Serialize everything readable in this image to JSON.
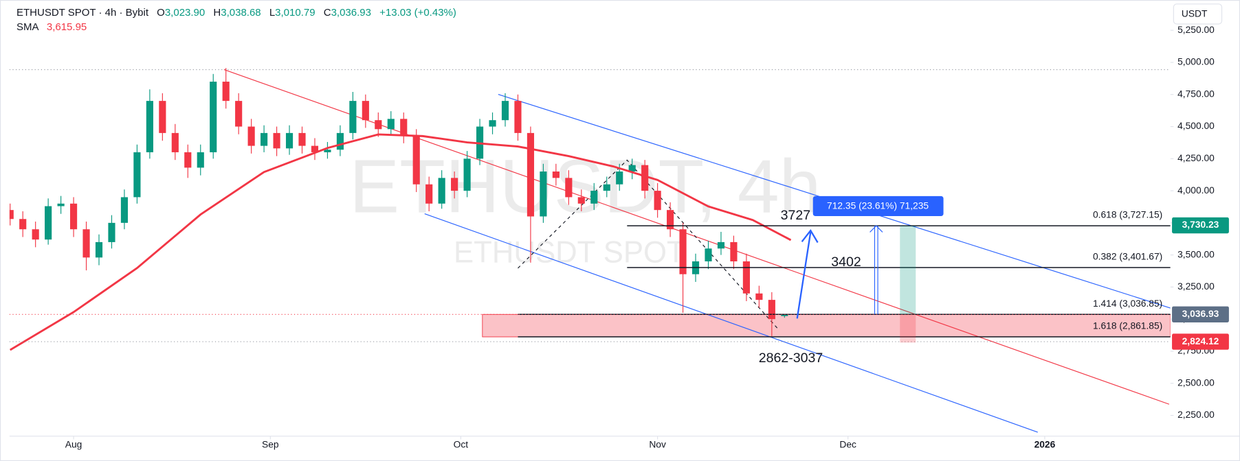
{
  "chart_data": {
    "type": "candlestick",
    "symbol": "ETHUSDT SPOT · 4h · Bybit",
    "ohlc_header": [
      {
        "label": "O",
        "value": "3,023.90"
      },
      {
        "label": "H",
        "value": "3,038.68"
      },
      {
        "label": "L",
        "value": "3,010.79"
      },
      {
        "label": "C",
        "value": "3,036.93"
      }
    ],
    "change": "+13.03 (+0.43%)",
    "currency": "USDT",
    "watermark": "ETHUSDT, 4h",
    "watermark_sub": "ETHUSDT SPOT",
    "up_color": "#089981",
    "down_color": "#f23645",
    "x": [
      -10,
      -8,
      -6,
      -4,
      -2,
      0,
      2,
      4,
      6,
      8,
      10,
      12,
      14,
      16,
      18,
      20,
      22,
      24,
      26,
      28,
      30,
      32,
      34,
      36,
      38,
      40,
      42,
      44,
      46,
      48,
      50,
      52,
      54,
      56,
      58,
      60,
      62,
      64,
      66,
      68,
      70,
      72,
      74,
      76,
      78,
      80,
      82,
      84,
      86,
      88,
      90,
      92,
      94,
      96,
      98,
      100,
      102,
      104,
      106,
      108,
      110,
      112
    ],
    "open": [
      3850,
      3780,
      3700,
      3620,
      3880,
      3900,
      3700,
      3480,
      3600,
      3750,
      3950,
      4300,
      4700,
      4450,
      4300,
      4180,
      4300,
      4850,
      4700,
      4500,
      4350,
      4450,
      4330,
      4450,
      4350,
      4300,
      4320,
      4450,
      4700,
      4550,
      4480,
      4560,
      4430,
      4050,
      3900,
      4100,
      4000,
      4250,
      4500,
      4550,
      4700,
      4450,
      3800,
      4150,
      4100,
      3950,
      3900,
      4000,
      4050,
      4150,
      4200,
      4000,
      3850,
      3700,
      3350,
      3450,
      3550,
      3600,
      3450,
      3200,
      3150,
      3023.9
    ],
    "high": [
      3900,
      3840,
      3760,
      3940,
      3960,
      3950,
      3760,
      3660,
      3810,
      4010,
      4360,
      4790,
      4760,
      4520,
      4360,
      4360,
      4910,
      4956,
      4760,
      4560,
      4510,
      4500,
      4510,
      4500,
      4410,
      4380,
      4510,
      4770,
      4750,
      4610,
      4620,
      4610,
      4480,
      4110,
      4160,
      4150,
      4310,
      4560,
      4610,
      4760,
      4750,
      4500,
      4210,
      4210,
      4160,
      4010,
      4060,
      4110,
      4210,
      4250,
      4240,
      4060,
      3910,
      3750,
      3510,
      3610,
      3680,
      3650,
      3510,
      3260,
      3210,
      3038.68
    ],
    "low": [
      3730,
      3640,
      3560,
      3580,
      3820,
      3640,
      3380,
      3420,
      3550,
      3700,
      3900,
      4250,
      4390,
      4240,
      4100,
      4120,
      4250,
      4640,
      4440,
      4290,
      4300,
      4270,
      4280,
      4290,
      4240,
      4250,
      4270,
      4400,
      4490,
      4420,
      4430,
      4370,
      3990,
      3840,
      3860,
      3940,
      3950,
      4200,
      4440,
      4500,
      4390,
      3440,
      3750,
      4040,
      3890,
      3840,
      3850,
      3950,
      4000,
      4090,
      3940,
      3790,
      3640,
      3050,
      3290,
      3390,
      3500,
      3390,
      3140,
      3090,
      2868,
      3010.79
    ],
    "close": [
      3780,
      3700,
      3620,
      3880,
      3900,
      3700,
      3480,
      3600,
      3750,
      3950,
      4300,
      4700,
      4450,
      4300,
      4180,
      4300,
      4850,
      4700,
      4500,
      4350,
      4450,
      4330,
      4450,
      4350,
      4300,
      4320,
      4450,
      4700,
      4550,
      4480,
      4560,
      4430,
      4050,
      3900,
      4100,
      4000,
      4250,
      4500,
      4550,
      4700,
      4450,
      3800,
      4150,
      4100,
      3950,
      3900,
      4000,
      4050,
      4150,
      4200,
      4000,
      3850,
      3700,
      3350,
      3450,
      3550,
      3600,
      3450,
      3200,
      3150,
      3000,
      3036.93
    ],
    "sma": {
      "name": "SMA",
      "value_label": "3,615.95",
      "color": "#f23645",
      "x": [
        -10,
        0,
        10,
        20,
        30,
        40,
        48,
        55,
        62,
        70,
        78,
        85,
        92,
        100,
        107,
        113
      ],
      "values": [
        2760,
        3055,
        3398,
        3815,
        4146,
        4333,
        4439,
        4426,
        4377,
        4345,
        4270,
        4190,
        4084,
        3878,
        3772,
        3616
      ]
    },
    "xlim": [
      -10.1,
      172.8
    ],
    "xticks": [
      {
        "value": 0,
        "label": "Aug"
      },
      {
        "value": 31,
        "label": "Sep"
      },
      {
        "value": 61,
        "label": "Oct"
      },
      {
        "value": 92,
        "label": "Nov"
      },
      {
        "value": 122,
        "label": "Dec"
      },
      {
        "value": 153,
        "label": "2026"
      }
    ],
    "ylim": [
      2088,
      5455
    ],
    "yticks": [
      {
        "value": 2250,
        "label": "2,250.00"
      },
      {
        "value": 2500,
        "label": "2,500.00"
      },
      {
        "value": 2750,
        "label": "2,750.00"
      },
      {
        "value": 3000,
        "label": "3,000.00"
      },
      {
        "value": 3250,
        "label": "3,250.00"
      },
      {
        "value": 3500,
        "label": "3,500.00"
      },
      {
        "value": 3750,
        "label": "3,750.00"
      },
      {
        "value": 4000,
        "label": "4,000.00"
      },
      {
        "value": 4250,
        "label": "4,250.00"
      },
      {
        "value": 4500,
        "label": "4,500.00"
      },
      {
        "value": 4750,
        "label": "4,750.00"
      },
      {
        "value": 5000,
        "label": "5,000.00"
      },
      {
        "value": 5250,
        "label": "5,250.00"
      }
    ],
    "grid": false,
    "trendlines": [
      {
        "color": "#2962ff",
        "points": [
          [
            66.9,
            4751
          ],
          [
            172.8,
            3086
          ]
        ]
      },
      {
        "color": "#2962ff",
        "points": [
          [
            55.3,
            3821
          ],
          [
            151.9,
            2119
          ]
        ]
      },
      {
        "color": "#f23645",
        "points": [
          [
            23.7,
            4944
          ],
          [
            172.6,
            2337
          ]
        ]
      }
    ],
    "zigzag": {
      "color": "#131722",
      "points": [
        [
          70,
          3397
        ],
        [
          87.2,
          4239
        ],
        [
          111.1,
          2917
        ]
      ]
    },
    "fib_levels": [
      {
        "value": 3727.15,
        "label": "0.618 (3,727.15)",
        "from": 87.2
      },
      {
        "value": 3401.67,
        "label": "0.382 (3,401.67)",
        "from": 87.2
      },
      {
        "value": 3036.85,
        "label": "1.414 (3,036.85)",
        "from": 70
      },
      {
        "value": 2861.85,
        "label": "1.618 (2,861.85)",
        "from": 70
      }
    ],
    "price_tags": [
      {
        "value": 3730.23,
        "label": "3,730.23",
        "color": "#089981"
      },
      {
        "value": 3036.93,
        "label": "3,036.93",
        "color": "#5d6f86"
      },
      {
        "value": 2824.12,
        "label": "2,824.12",
        "color": "#f23645"
      }
    ],
    "annotations": [
      "3727",
      "3402",
      "2862-3037"
    ],
    "measure_label": "712.35 (23.61%) 71,235"
  }
}
